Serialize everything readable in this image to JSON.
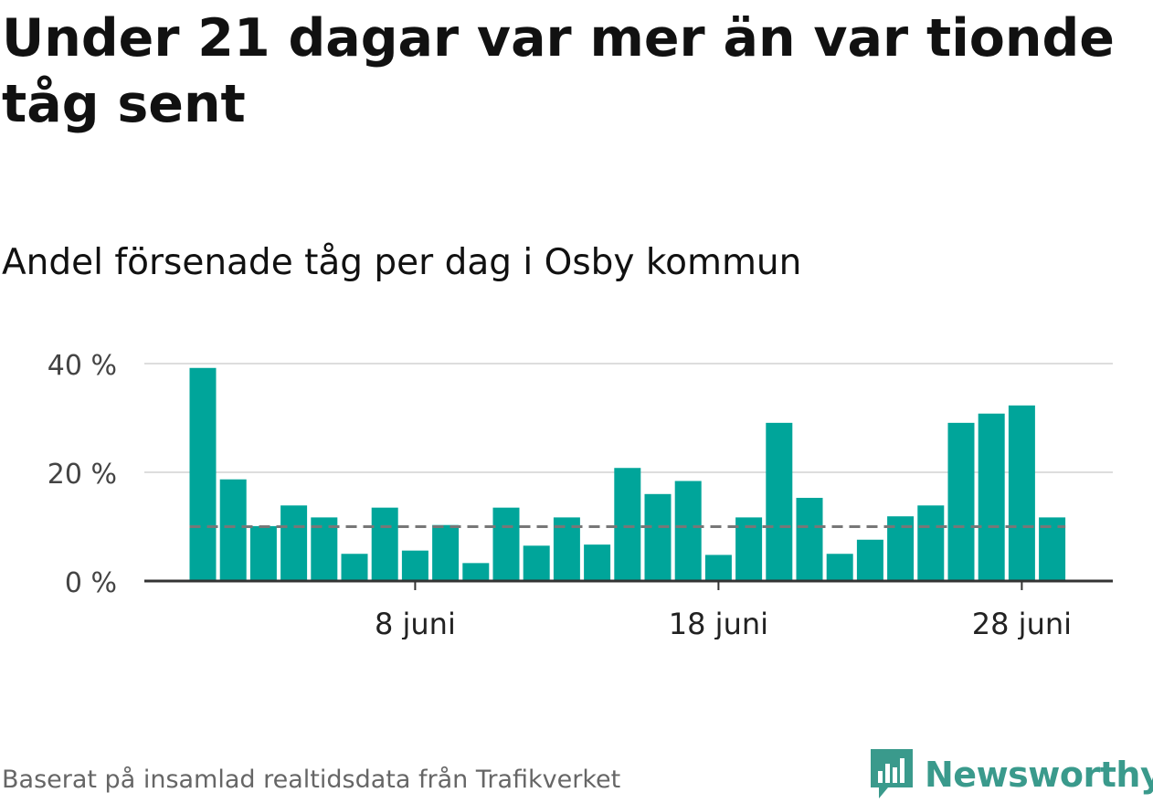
{
  "title": "Under 21 dagar var mer än var tionde tåg sent",
  "subtitle": "Andel försenade tåg per dag i Osby kommun",
  "footer": {
    "source": "Baserat på insamlad realtidsdata från Trafikverket",
    "brand": "Newsworthy",
    "brand_icon": "newsworthy-chat-bar-logo-icon"
  },
  "colors": {
    "bar": "#00a59a",
    "grid": "#dddddd",
    "baseline": "#333333",
    "reference": "#777777",
    "brand": "#3a9a8c"
  },
  "chart_data": {
    "type": "bar",
    "x": [
      "1 juni",
      "2 juni",
      "3 juni",
      "4 juni",
      "5 juni",
      "6 juni",
      "7 juni",
      "8 juni",
      "9 juni",
      "10 juni",
      "11 juni",
      "12 juni",
      "13 juni",
      "14 juni",
      "15 juni",
      "16 juni",
      "17 juni",
      "18 juni",
      "19 juni",
      "20 juni",
      "21 juni",
      "22 juni",
      "23 juni",
      "24 juni",
      "25 juni",
      "26 juni",
      "27 juni",
      "28 juni",
      "29 juni"
    ],
    "values": [
      39.2,
      18.7,
      10.1,
      13.9,
      11.7,
      5.0,
      13.5,
      5.6,
      10.3,
      3.3,
      13.5,
      6.5,
      11.7,
      6.7,
      20.8,
      16.0,
      18.4,
      4.8,
      11.7,
      29.1,
      15.3,
      5.0,
      7.6,
      11.9,
      13.9,
      29.1,
      30.8,
      32.3,
      11.7
    ],
    "ylim": [
      0,
      40
    ],
    "yticks": [
      0,
      20,
      40
    ],
    "ytick_labels": [
      "0 %",
      "20 %",
      "40 %"
    ],
    "xticks": [
      {
        "at": "8 juni",
        "label": "8 juni"
      },
      {
        "at": "18 juni",
        "label": "18 juni"
      },
      {
        "at": "28 juni",
        "label": "28 juni"
      }
    ],
    "reference_line": 10,
    "grid": true,
    "xlabel": "",
    "ylabel": ""
  }
}
